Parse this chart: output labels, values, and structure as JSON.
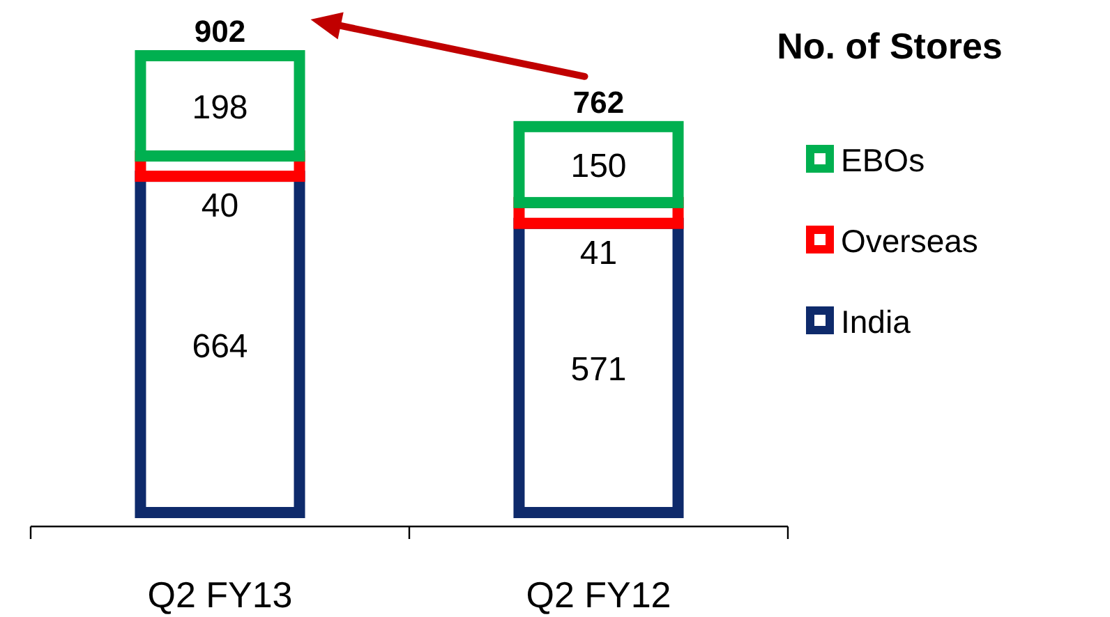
{
  "chart_data": {
    "type": "bar",
    "stacked": true,
    "categories": [
      "Q2 FY13",
      "Q2 FY12"
    ],
    "series": [
      {
        "name": "India",
        "color": "#0e2a6b",
        "values": [
          664,
          571
        ]
      },
      {
        "name": "Overseas",
        "color": "#ff0000",
        "values": [
          40,
          41
        ]
      },
      {
        "name": "EBOs",
        "color": "#00b050",
        "values": [
          198,
          150
        ]
      }
    ],
    "data_labels": true,
    "totals": [
      "902",
      "762"
    ],
    "legend": "right",
    "legend_title": "No. of Stores"
  }
}
